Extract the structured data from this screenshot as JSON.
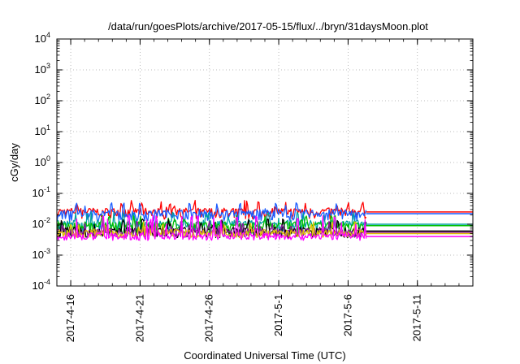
{
  "chart_data": {
    "type": "line",
    "title": "/data/run/goesPlots/archive/2017-05-15/flux/../bryn/31daysMoon.plot",
    "xlabel": "Coordinated Universal Time (UTC)",
    "ylabel": "cGy/day",
    "y_scale": "log",
    "ylim": [
      0.0001,
      10000
    ],
    "y_ticks": [
      {
        "base": "10",
        "exp": "-4"
      },
      {
        "base": "10",
        "exp": "-3"
      },
      {
        "base": "10",
        "exp": "-2"
      },
      {
        "base": "10",
        "exp": "-1"
      },
      {
        "base": "10",
        "exp": "0"
      },
      {
        "base": "10",
        "exp": "1"
      },
      {
        "base": "10",
        "exp": "2"
      },
      {
        "base": "10",
        "exp": "3"
      },
      {
        "base": "10",
        "exp": "4"
      }
    ],
    "xlim": [
      "2017-04-15",
      "2017-05-15"
    ],
    "x_ticks": [
      "2017-4-16",
      "2017-4-21",
      "2017-4-26",
      "2017-5-1",
      "2017-5-6",
      "2017-5-11"
    ],
    "x_tick_dates": [
      "2017-04-16",
      "2017-04-21",
      "2017-04-26",
      "2017-05-01",
      "2017-05-06",
      "2017-05-11"
    ],
    "grid": true,
    "data_end": "2017-05-07",
    "series": [
      {
        "color": "#ff0000",
        "level": 0.025,
        "low": 0.016,
        "high": 0.06
      },
      {
        "color": "#1a5cff",
        "level": 0.022,
        "low": 0.014,
        "high": 0.05
      },
      {
        "color": "#00a0a0",
        "level": 0.01,
        "low": 0.006,
        "high": 0.025
      },
      {
        "color": "#00c000",
        "level": 0.009,
        "low": 0.005,
        "high": 0.02
      },
      {
        "color": "#000000",
        "level": 0.006,
        "low": 0.004,
        "high": 0.015
      },
      {
        "color": "#8a1a9a",
        "level": 0.0055,
        "low": 0.004,
        "high": 0.013
      },
      {
        "color": "#e0c000",
        "level": 0.005,
        "low": 0.004,
        "high": 0.012
      },
      {
        "color": "#ff00ff",
        "level": 0.004,
        "low": 0.0035,
        "high": 0.02
      }
    ]
  }
}
